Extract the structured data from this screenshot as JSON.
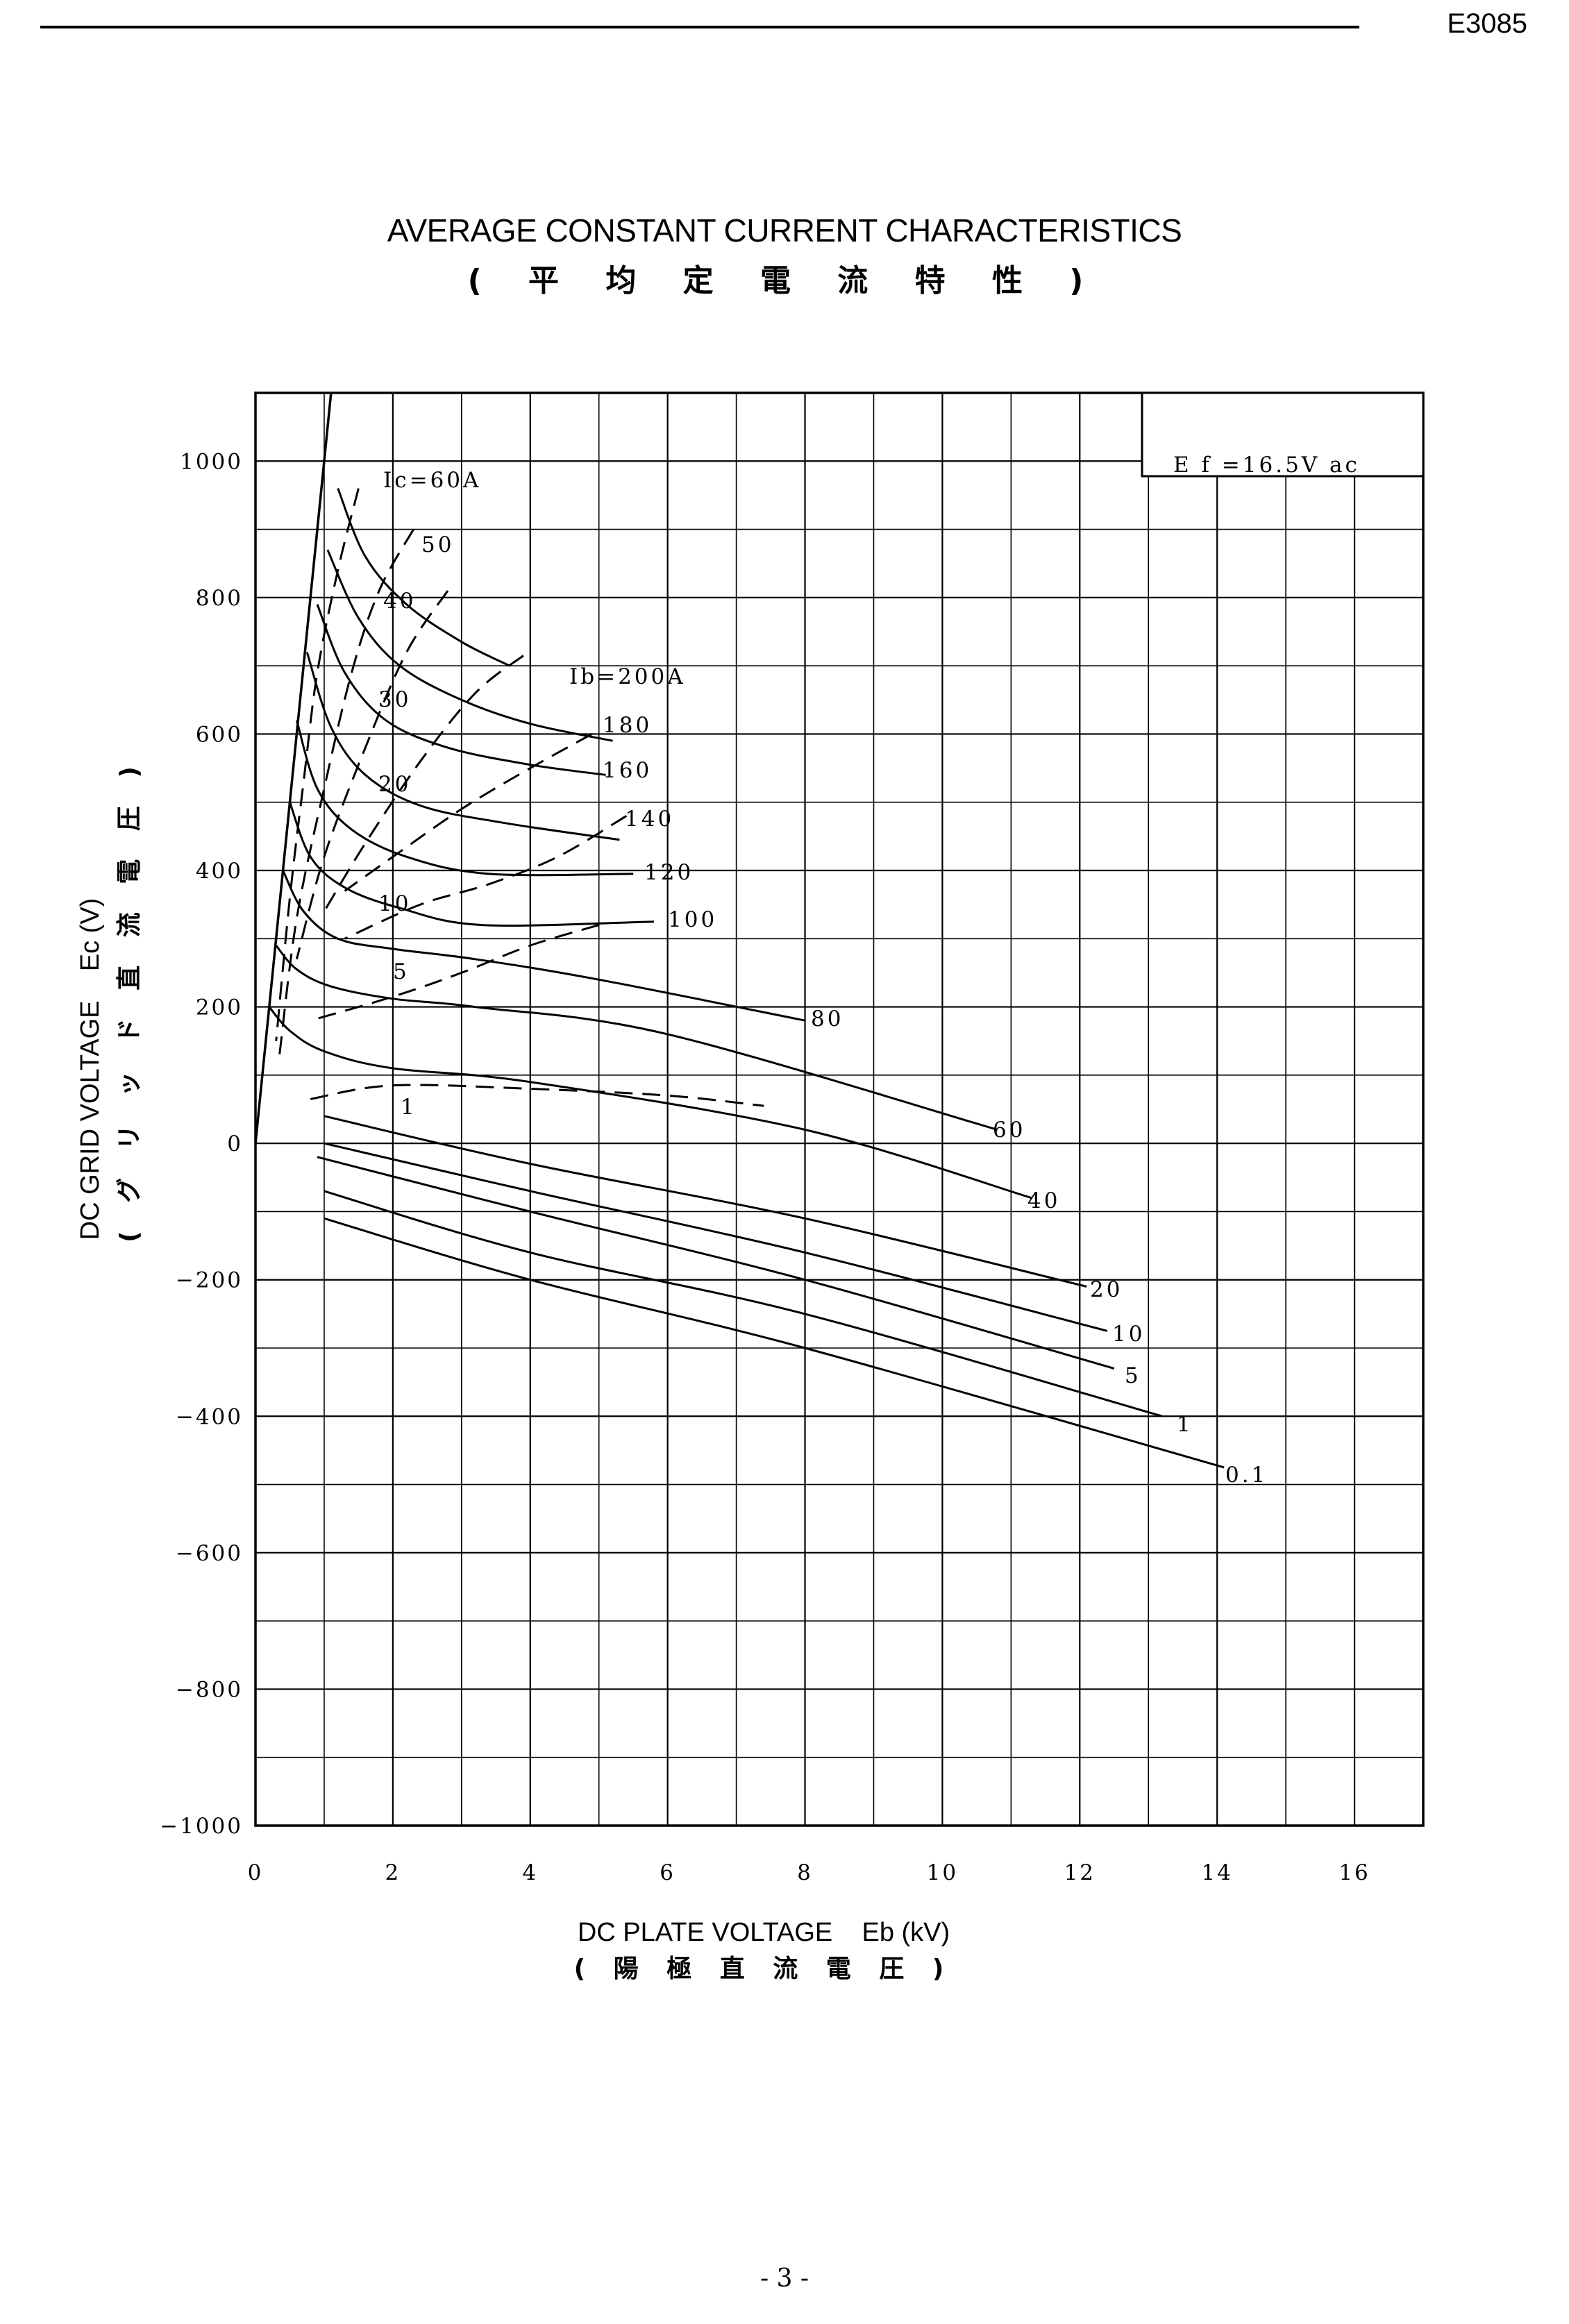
{
  "document": {
    "code": "E3085",
    "page_number": "- 3 -"
  },
  "chart_data": {
    "type": "line",
    "title": "AVERAGE CONSTANT CURRENT CHARACTERISTICS",
    "subtitle": "( 平 均 定 電 流 特 性 )",
    "xlabel": "DC PLATE VOLTAGE    Eb (kV)",
    "xlabel_sub": "( 陽 極 直 流 電 圧 )",
    "ylabel": "DC GRID VOLTAGE    Ec (V)",
    "ylabel_sub": "( グ リ ッ ド 直 流 電 圧 )",
    "xlim": [
      0,
      17
    ],
    "ylim": [
      -1000,
      1100
    ],
    "x_ticks": [
      "0",
      "2",
      "4",
      "6",
      "8",
      "10",
      "12",
      "16",
      "14"
    ],
    "x_tick_values": [
      0,
      2,
      4,
      6,
      8,
      10,
      12,
      16,
      14
    ],
    "y_ticks": [
      "1000",
      "800",
      "600",
      "400",
      "200",
      "0",
      "−200",
      "−400",
      "−600",
      "−800",
      "−1000"
    ],
    "y_tick_values": [
      1000,
      800,
      600,
      400,
      200,
      0,
      -200,
      -400,
      -600,
      -800,
      -1000
    ],
    "grid": true,
    "legend_note": "E f =16.5V ac",
    "boundary_line": {
      "x": [
        0,
        1.1
      ],
      "y": [
        0,
        1100
      ]
    },
    "plate_current_curves": [
      {
        "label": "Ib=200A",
        "x": [
          1.2,
          1.6,
          2.2,
          3.0,
          3.7
        ],
        "y": [
          960,
          860,
          790,
          735,
          700
        ]
      },
      {
        "label": "180",
        "x": [
          1.05,
          1.5,
          2.1,
          3.0,
          4.0,
          5.2
        ],
        "y": [
          870,
          770,
          700,
          650,
          615,
          590
        ]
      },
      {
        "label": "160",
        "x": [
          0.9,
          1.3,
          1.9,
          2.8,
          4.0,
          5.1
        ],
        "y": [
          790,
          690,
          620,
          580,
          555,
          540
        ]
      },
      {
        "label": "140",
        "x": [
          0.75,
          1.1,
          1.6,
          2.4,
          3.6,
          5.3
        ],
        "y": [
          720,
          610,
          540,
          495,
          470,
          445
        ]
      },
      {
        "label": "120",
        "x": [
          0.6,
          0.9,
          1.4,
          2.2,
          3.4,
          5.5
        ],
        "y": [
          620,
          520,
          460,
          420,
          395,
          395
        ]
      },
      {
        "label": "100",
        "x": [
          0.5,
          0.8,
          1.3,
          2.1,
          3.3,
          5.8
        ],
        "y": [
          500,
          420,
          375,
          345,
          320,
          325
        ]
      },
      {
        "label": "80",
        "x": [
          0.4,
          0.7,
          1.2,
          2.0,
          3.2,
          5.0,
          8.0
        ],
        "y": [
          400,
          340,
          300,
          285,
          270,
          240,
          180
        ]
      },
      {
        "label": "60",
        "x": [
          0.3,
          0.6,
          1.1,
          2.0,
          3.2,
          6.0,
          10.8
        ],
        "y": [
          290,
          255,
          230,
          212,
          200,
          160,
          20
        ]
      },
      {
        "label": "40",
        "x": [
          0.2,
          0.5,
          1.0,
          2.0,
          4.0,
          8.0,
          11.3
        ],
        "y": [
          200,
          165,
          135,
          110,
          90,
          20,
          -80
        ]
      },
      {
        "label": "20",
        "x": [
          1.0,
          4.0,
          8.0,
          12.1
        ],
        "y": [
          40,
          -30,
          -110,
          -210
        ]
      },
      {
        "label": "10",
        "x": [
          1.0,
          4.0,
          8.0,
          12.4
        ],
        "y": [
          0,
          -70,
          -160,
          -275
        ]
      },
      {
        "label": "5",
        "x": [
          0.9,
          4.0,
          8.0,
          12.5
        ],
        "y": [
          -20,
          -100,
          -200,
          -330
        ]
      },
      {
        "label": "1",
        "x": [
          1.0,
          4.0,
          8.0,
          13.2
        ],
        "y": [
          -70,
          -160,
          -250,
          -400
        ]
      },
      {
        "label": "0.1",
        "x": [
          1.0,
          4.0,
          8.0,
          14.1
        ],
        "y": [
          -110,
          -200,
          -300,
          -475
        ]
      }
    ],
    "grid_current_curves": [
      {
        "label": "Ic=60A",
        "x": [
          1.5,
          1.2,
          0.9,
          0.7,
          0.5,
          0.3
        ],
        "y": [
          960,
          840,
          690,
          530,
          360,
          150
        ]
      },
      {
        "label": "50",
        "x": [
          2.3,
          1.8,
          1.4,
          1.0,
          0.6,
          0.35
        ],
        "y": [
          900,
          810,
          690,
          520,
          330,
          130
        ]
      },
      {
        "label": "40",
        "x": [
          2.8,
          2.2,
          1.6,
          1.0,
          0.6
        ],
        "y": [
          810,
          720,
          580,
          420,
          270
        ]
      },
      {
        "label": "30",
        "x": [
          3.9,
          3.2,
          2.4,
          1.6,
          1.0
        ],
        "y": [
          715,
          660,
          560,
          440,
          340
        ]
      },
      {
        "label": "20",
        "x": [
          4.9,
          4.0,
          3.0,
          2.0,
          1.3
        ],
        "y": [
          600,
          550,
          490,
          420,
          370
        ]
      },
      {
        "label": "10",
        "x": [
          5.4,
          4.4,
          3.4,
          2.4,
          1.3
        ],
        "y": [
          480,
          420,
          380,
          350,
          300
        ]
      },
      {
        "label": "5",
        "x": [
          5.0,
          4.0,
          3.0,
          2.0,
          0.8
        ],
        "y": [
          320,
          290,
          250,
          215,
          180
        ]
      },
      {
        "label": "1",
        "x": [
          0.8,
          2.0,
          4.0,
          6.0,
          7.4
        ],
        "y": [
          65,
          85,
          80,
          70,
          55
        ]
      }
    ]
  }
}
